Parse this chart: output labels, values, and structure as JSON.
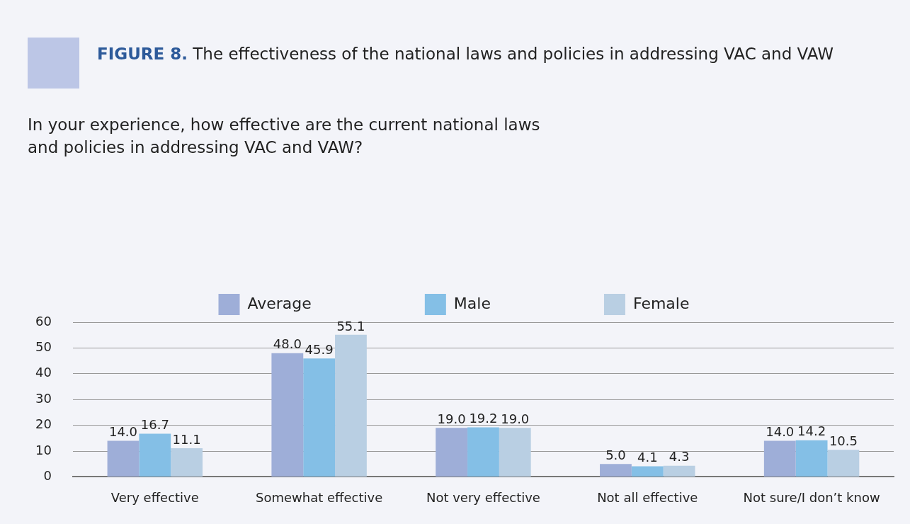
{
  "chart_data": {
    "type": "bar",
    "title": "FIGURE 8. The effectiveness of the national laws and policies in addressing VAC and VAW",
    "subtitle": "In your experience, how effective are the current national laws\nand policies in addressing VAC and VAW?",
    "categories": [
      "Very effective",
      "Somewhat effective",
      "Not very effective",
      "Not all effective",
      "Not sure/I don’t know"
    ],
    "series": [
      {
        "name": "Average",
        "color": "#9eaed8",
        "values": [
          14.0,
          48.0,
          19.0,
          5.0,
          14.0
        ],
        "value_labels": [
          "14.0",
          "48.0",
          "19.0",
          "5.0",
          "14.0"
        ]
      },
      {
        "name": "Male",
        "color": "#84bfe6",
        "values": [
          16.7,
          45.9,
          19.2,
          4.1,
          14.2
        ],
        "value_labels": [
          "16.7",
          "45.9",
          "19.2",
          "4.1",
          "14.2"
        ]
      },
      {
        "name": "Female",
        "color": "#b9cfe3",
        "values": [
          11.1,
          55.1,
          19.0,
          4.3,
          10.5
        ],
        "value_labels": [
          "11.1",
          "55.1",
          "19.0",
          "4.3",
          "10.5"
        ]
      }
    ],
    "ylim": [
      0,
      60
    ],
    "yticks": [
      0,
      10,
      20,
      30,
      40,
      50,
      60
    ],
    "grid": "y",
    "legend": "top"
  }
}
